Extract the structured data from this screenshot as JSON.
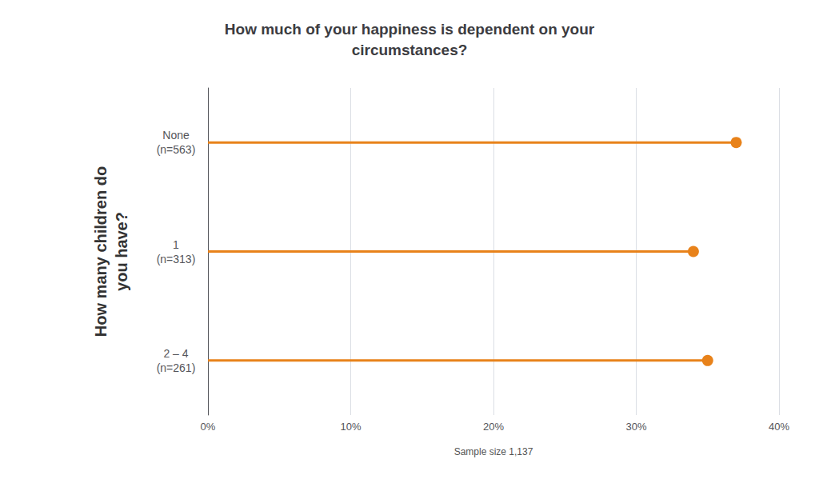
{
  "chart_data": {
    "type": "lollipop",
    "orientation": "horizontal",
    "title": "How much of your happiness is dependent on your\ncircumstances?",
    "ylabel": "How many children do\nyou have?",
    "xlabel": "Sample size 1,137",
    "categories": [
      "None\n(n=563)",
      "1\n(n=313)",
      "2 – 4\n(n=261)"
    ],
    "values": [
      37.0,
      34.0,
      35.0
    ],
    "color": "#E8821A",
    "xlim": [
      0,
      40
    ],
    "xticks": [
      {
        "value": 0,
        "label": "0%"
      },
      {
        "value": 10,
        "label": "10%"
      },
      {
        "value": 20,
        "label": "20%"
      },
      {
        "value": 30,
        "label": "30%"
      },
      {
        "value": 40,
        "label": "40%"
      }
    ],
    "grid": true
  }
}
